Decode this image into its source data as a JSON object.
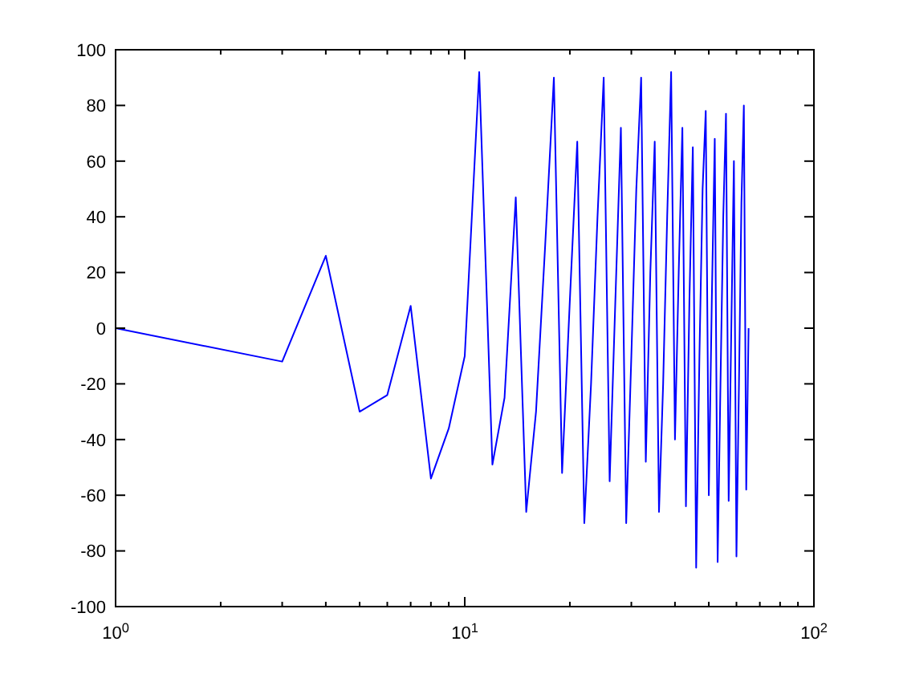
{
  "chart_data": {
    "type": "line",
    "log": "x",
    "xlim": [
      1,
      100
    ],
    "ylim": [
      -100,
      100
    ],
    "xticks": [
      {
        "value": 1,
        "label": "10$^{0}$"
      },
      {
        "value": 10,
        "label": "10$^{1}$"
      },
      {
        "value": 100,
        "label": "10$^{2}$"
      }
    ],
    "yticks": [
      -100,
      -80,
      -60,
      -40,
      -20,
      0,
      20,
      40,
      60,
      80,
      100
    ],
    "series": [
      {
        "color": "#0000ff",
        "x": [
          1,
          3,
          4,
          5,
          6,
          7,
          8,
          9,
          10,
          11,
          12,
          13,
          14,
          15,
          16,
          17,
          18,
          19,
          20,
          21,
          22,
          23,
          24,
          25,
          26,
          27,
          28,
          29,
          30,
          31,
          32,
          33,
          34,
          35,
          36,
          37,
          38,
          39,
          40,
          41,
          42,
          43,
          44,
          45,
          46,
          47,
          48,
          49,
          50,
          51,
          52,
          53,
          54,
          55,
          56,
          57,
          58,
          59,
          60,
          61,
          62,
          63,
          64,
          65
        ],
        "values": [
          0,
          -12,
          26,
          -30,
          -24,
          8,
          -54,
          -36,
          -10,
          92,
          -49,
          -25,
          47,
          -66,
          -30,
          30,
          90,
          -52,
          10,
          67,
          -70,
          -20,
          40,
          90,
          -55,
          10,
          72,
          -70,
          -10,
          50,
          90,
          -48,
          20,
          67,
          -66,
          -20,
          40,
          92,
          -40,
          20,
          72,
          -64,
          10,
          65,
          -86,
          -10,
          50,
          78,
          -60,
          10,
          68,
          -84,
          -20,
          40,
          77,
          -62,
          0,
          60,
          -82,
          -20,
          45,
          80,
          -58,
          0
        ]
      }
    ]
  }
}
